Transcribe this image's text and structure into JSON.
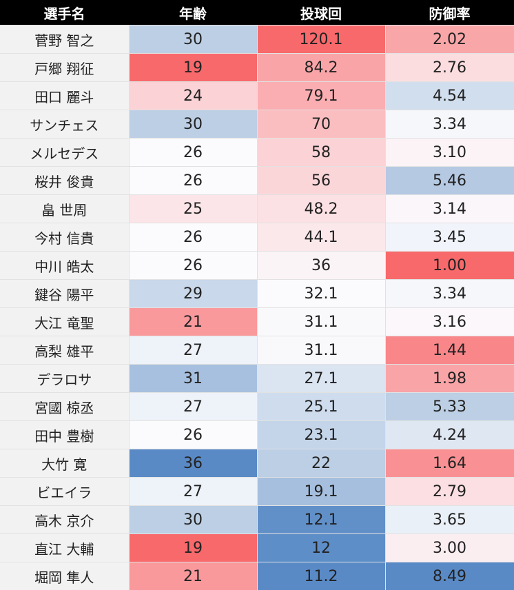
{
  "table": {
    "headers": [
      "選手名",
      "年齢",
      "投球回",
      "防御率"
    ],
    "rows": [
      {
        "name": "菅野 智之",
        "age": "30",
        "ip": "120.1",
        "era": "2.02",
        "age_bg": "#bccfe5",
        "ip_bg": "#f8696b",
        "era_bg": "#f9a6a9"
      },
      {
        "name": "戸郷 翔征",
        "age": "19",
        "ip": "84.2",
        "era": "2.76",
        "age_bg": "#f8696b",
        "ip_bg": "#f9a5a8",
        "era_bg": "#fbdde0"
      },
      {
        "name": "田口 麗斗",
        "age": "24",
        "ip": "79.1",
        "era": "4.54",
        "age_bg": "#fbd2d5",
        "ip_bg": "#faaeb1",
        "era_bg": "#d1deee"
      },
      {
        "name": "サンチェス",
        "age": "30",
        "ip": "70",
        "era": "3.34",
        "age_bg": "#bccfe5",
        "ip_bg": "#fabec1",
        "era_bg": "#f6f7fb"
      },
      {
        "name": "メルセデス",
        "age": "26",
        "ip": "58",
        "era": "3.10",
        "age_bg": "#fbfafd",
        "ip_bg": "#fbd2d5",
        "era_bg": "#fbf3f6"
      },
      {
        "name": "桜井 俊貴",
        "age": "26",
        "ip": "56",
        "era": "5.46",
        "age_bg": "#fbfafd",
        "ip_bg": "#fbd6d9",
        "era_bg": "#b5c9e3"
      },
      {
        "name": "畠 世周",
        "age": "25",
        "ip": "48.2",
        "era": "3.14",
        "age_bg": "#fbe5e8",
        "ip_bg": "#fbe1e4",
        "era_bg": "#fbf6f9"
      },
      {
        "name": "今村 信貴",
        "age": "26",
        "ip": "44.1",
        "era": "3.45",
        "age_bg": "#fbfafd",
        "ip_bg": "#fbe8eb",
        "era_bg": "#f1f4fa"
      },
      {
        "name": "中川 皓太",
        "age": "26",
        "ip": "36",
        "era": "1.00",
        "age_bg": "#fbfafd",
        "ip_bg": "#fbf4f7",
        "era_bg": "#f8696b"
      },
      {
        "name": "鍵谷 陽平",
        "age": "29",
        "ip": "32.1",
        "era": "3.34",
        "age_bg": "#c9d8ea",
        "ip_bg": "#fbfafd",
        "era_bg": "#f6f7fb"
      },
      {
        "name": "大江 竜聖",
        "age": "21",
        "ip": "31.1",
        "era": "3.16",
        "age_bg": "#f9999c",
        "ip_bg": "#f9f9fc",
        "era_bg": "#fbf7fa"
      },
      {
        "name": "高梨 雄平",
        "age": "27",
        "ip": "31.1",
        "era": "1.44",
        "age_bg": "#eef2f9",
        "ip_bg": "#f9f9fc",
        "era_bg": "#f98689"
      },
      {
        "name": "デラロサ",
        "age": "31",
        "ip": "27.1",
        "era": "1.98",
        "age_bg": "#a8c0df",
        "ip_bg": "#dbe5f1",
        "era_bg": "#f9a4a7"
      },
      {
        "name": "宮國 椋丞",
        "age": "27",
        "ip": "25.1",
        "era": "5.33",
        "age_bg": "#eef2f9",
        "ip_bg": "#cedced",
        "era_bg": "#bccfe5"
      },
      {
        "name": "田中 豊樹",
        "age": "26",
        "ip": "23.1",
        "era": "4.24",
        "age_bg": "#fbfafd",
        "ip_bg": "#c4d5ea",
        "era_bg": "#dfe7f3"
      },
      {
        "name": "大竹 寛",
        "age": "36",
        "ip": "22",
        "era": "1.64",
        "age_bg": "#5a8ac6",
        "ip_bg": "#bccfe5",
        "era_bg": "#f99194"
      },
      {
        "name": "ビエイラ",
        "age": "27",
        "ip": "19.1",
        "era": "2.79",
        "age_bg": "#eef2f9",
        "ip_bg": "#a6bfde",
        "era_bg": "#fbdfe2"
      },
      {
        "name": "高木 京介",
        "age": "30",
        "ip": "12.1",
        "era": "3.65",
        "age_bg": "#bccfe5",
        "ip_bg": "#6190c9",
        "era_bg": "#eaf0f7"
      },
      {
        "name": "直江 大輔",
        "age": "19",
        "ip": "12",
        "era": "3.00",
        "age_bg": "#f8696b",
        "ip_bg": "#5e8ec8",
        "era_bg": "#fbeef1"
      },
      {
        "name": "堀岡 隼人",
        "age": "21",
        "ip": "11.2",
        "era": "8.49",
        "age_bg": "#f9999c",
        "ip_bg": "#5a8ac6",
        "era_bg": "#5a8ac6"
      }
    ]
  }
}
